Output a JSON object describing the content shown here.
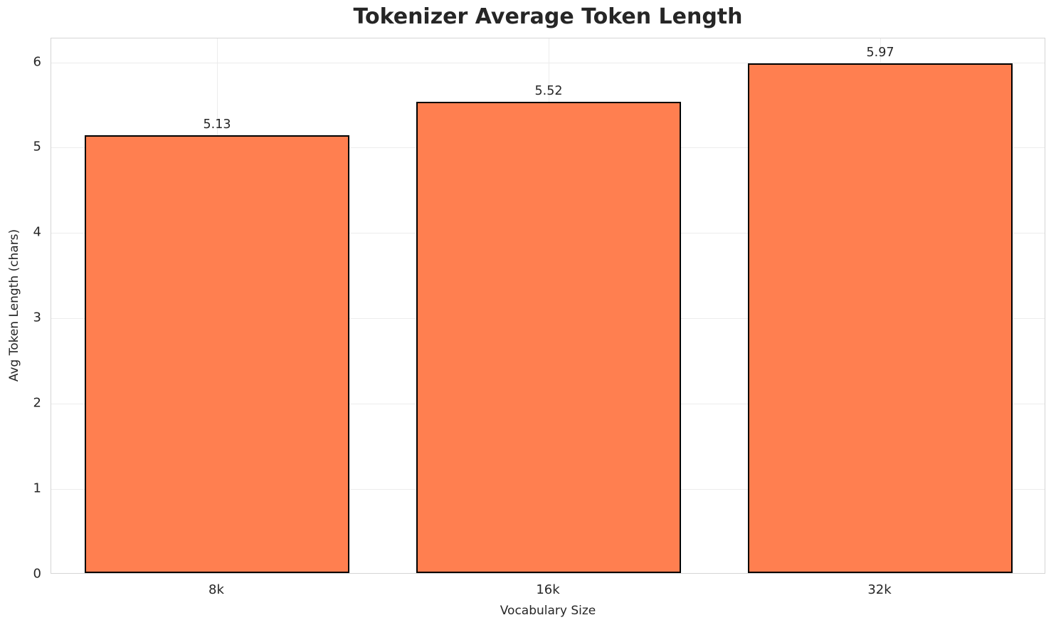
{
  "chart_data": {
    "type": "bar",
    "title": "Tokenizer Average Token Length",
    "xlabel": "Vocabulary Size",
    "ylabel": "Avg Token Length (chars)",
    "categories": [
      "8k",
      "16k",
      "32k"
    ],
    "values": [
      5.13,
      5.52,
      5.97
    ],
    "value_labels": [
      "5.13",
      "5.52",
      "5.97"
    ],
    "yticks": [
      0,
      1,
      2,
      3,
      4,
      5,
      6
    ],
    "ylim": [
      0,
      6.28
    ],
    "bar_color": "#FF7F50",
    "bar_edge_color": "#000000",
    "bar_width_fraction": 0.8,
    "grid": true,
    "legend_position": "none"
  }
}
